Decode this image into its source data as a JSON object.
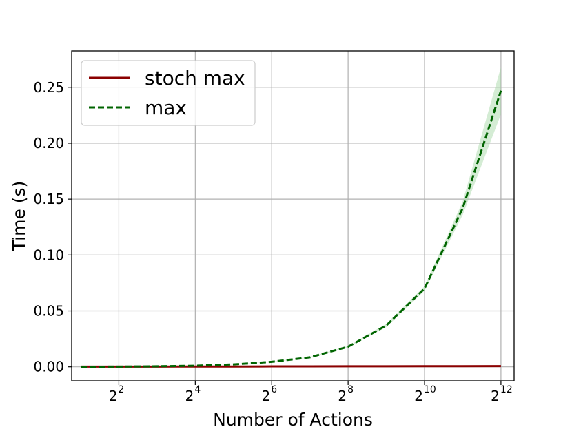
{
  "chart_data": {
    "type": "line",
    "xlabel": "Number of Actions",
    "ylabel": "Time (s)",
    "x_scale": "log2",
    "x": [
      2,
      4,
      8,
      16,
      32,
      64,
      128,
      256,
      512,
      1024,
      2048,
      4096
    ],
    "xlim": [
      1.7,
      5200
    ],
    "ylim": [
      -0.0125,
      0.2825
    ],
    "x_ticks": [
      {
        "value": 4,
        "base": "2",
        "exp": "2"
      },
      {
        "value": 16,
        "base": "2",
        "exp": "4"
      },
      {
        "value": 64,
        "base": "2",
        "exp": "6"
      },
      {
        "value": 256,
        "base": "2",
        "exp": "8"
      },
      {
        "value": 1024,
        "base": "2",
        "exp": "10"
      },
      {
        "value": 4096,
        "base": "2",
        "exp": "12"
      }
    ],
    "y_ticks": [
      {
        "value": 0.0,
        "label": "0.00"
      },
      {
        "value": 0.05,
        "label": "0.05"
      },
      {
        "value": 0.1,
        "label": "0.10"
      },
      {
        "value": 0.15,
        "label": "0.15"
      },
      {
        "value": 0.2,
        "label": "0.20"
      },
      {
        "value": 0.25,
        "label": "0.25"
      }
    ],
    "grid": true,
    "legend_position": "top-left",
    "series": [
      {
        "name": "stoch max",
        "color": "#8b0000",
        "style": "solid",
        "values": [
          0.0002,
          0.0002,
          0.0002,
          0.0003,
          0.0003,
          0.0004,
          0.0004,
          0.0005,
          0.0005,
          0.0006,
          0.0006,
          0.0007
        ]
      },
      {
        "name": "max",
        "color": "#006400",
        "style": "dashed",
        "values": [
          0.0001,
          0.0002,
          0.0005,
          0.001,
          0.0022,
          0.0045,
          0.0085,
          0.018,
          0.037,
          0.07,
          0.142,
          0.247
        ],
        "band_lower": [
          0.0001,
          0.0002,
          0.0005,
          0.001,
          0.0021,
          0.0043,
          0.0082,
          0.0175,
          0.0355,
          0.068,
          0.136,
          0.226
        ],
        "band_upper": [
          0.0001,
          0.0002,
          0.0005,
          0.001,
          0.0023,
          0.0047,
          0.0088,
          0.0185,
          0.0385,
          0.072,
          0.148,
          0.268
        ],
        "band_color": "#9fd49f"
      }
    ]
  }
}
